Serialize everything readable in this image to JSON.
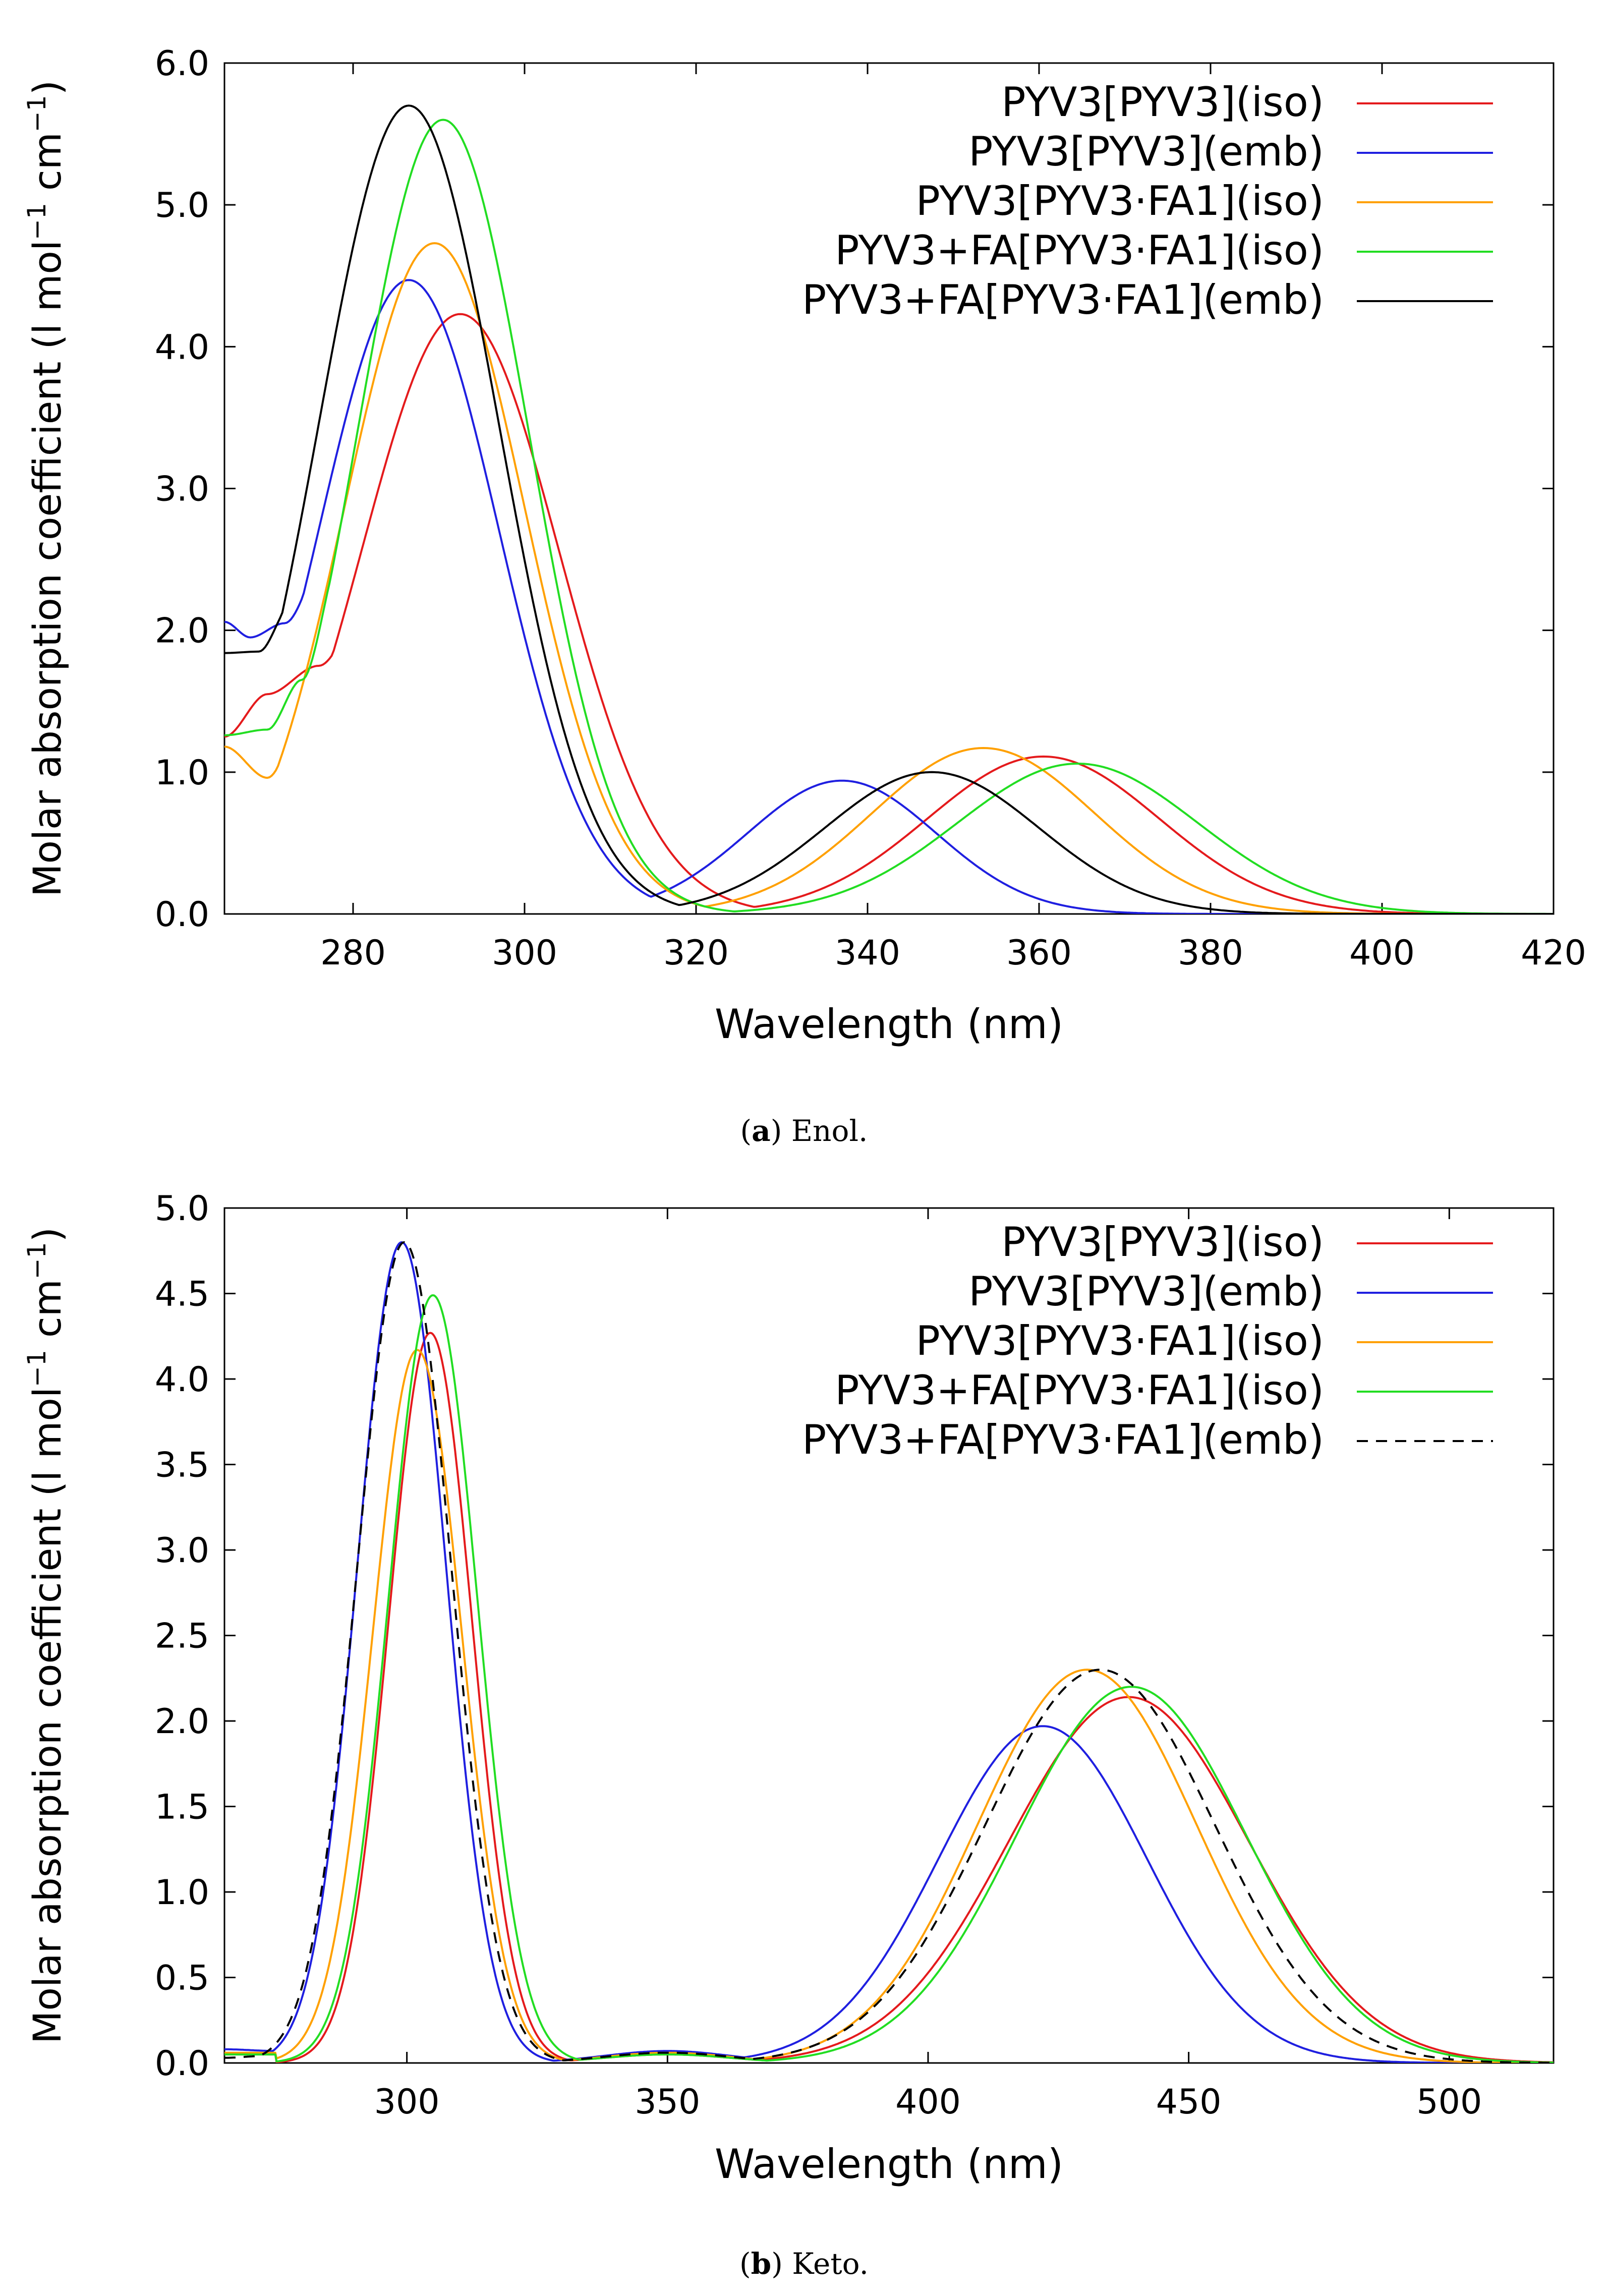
{
  "chart_data": [
    {
      "type": "line",
      "caption_label": "a",
      "caption_text": "Enol.",
      "xlabel": "Wavelength (nm)",
      "ylabel": "Molar absorption coefficient (l mol",
      "ylabel_sup1": "−1",
      "ylabel_mid": " cm",
      "ylabel_sup2": "−1",
      "ylabel_end": ")",
      "xlim": [
        265,
        420
      ],
      "ylim": [
        0,
        6
      ],
      "xticks": [
        280,
        300,
        320,
        340,
        360,
        380,
        400,
        420
      ],
      "yticks": [
        0,
        1,
        2,
        3,
        4,
        5,
        6
      ],
      "ytick_labels": [
        "0.0",
        "1.0",
        "2.0",
        "3.0",
        "4.0",
        "5.0",
        "6.0"
      ],
      "legend_position": "top-right",
      "series": [
        {
          "name": "PYV3[PYV3](iso)",
          "color": "#e41a1c",
          "dash": "solid",
          "baseline": [
            [
              265,
              1.25
            ],
            [
              270,
              1.55
            ],
            [
              276,
              1.75
            ],
            [
              282,
              2.2
            ],
            [
              287,
              3.0
            ]
          ],
          "peaks": [
            [
              292.5,
              4.23,
              11.5
            ],
            [
              360.5,
              1.11,
              13.5
            ]
          ]
        },
        {
          "name": "PYV3[PYV3](emb)",
          "color": "#1f1fe0",
          "dash": "solid",
          "baseline": [
            [
              265,
              2.06
            ],
            [
              268,
              1.95
            ],
            [
              272,
              2.05
            ],
            [
              278,
              2.7
            ]
          ],
          "peaks": [
            [
              286.5,
              4.47,
              10.5
            ],
            [
              337,
              0.94,
              11.0
            ]
          ]
        },
        {
          "name": "PYV3[PYV3·FA1](iso)",
          "color": "#ffa000",
          "dash": "solid",
          "baseline": [
            [
              265,
              1.18
            ],
            [
              270,
              0.96
            ],
            [
              274,
              1.3
            ],
            [
              279,
              2.3
            ]
          ],
          "peaks": [
            [
              289.5,
              4.73,
              10.5
            ],
            [
              353.5,
              1.17,
              13.0
            ]
          ]
        },
        {
          "name": "PYV3+FA[PYV3·FA1](iso)",
          "color": "#22dd22",
          "dash": "solid",
          "baseline": [
            [
              265,
              1.26
            ],
            [
              270,
              1.3
            ],
            [
              274,
              1.65
            ],
            [
              279,
              2.6
            ]
          ],
          "peaks": [
            [
              290.5,
              5.6,
              10.0
            ],
            [
              364.5,
              1.06,
              14.0
            ]
          ]
        },
        {
          "name": "PYV3+FA[PYV3·FA1](emb)",
          "color": "#000000",
          "dash": "solid",
          "baseline": [
            [
              265,
              1.84
            ],
            [
              269,
              1.85
            ],
            [
              273,
              2.2
            ],
            [
              278,
              3.4
            ]
          ],
          "peaks": [
            [
              286.5,
              5.7,
              10.5
            ],
            [
              347.5,
              1.0,
              12.5
            ]
          ]
        }
      ]
    },
    {
      "type": "line",
      "caption_label": "b",
      "caption_text": "Keto.",
      "xlabel": "Wavelength (nm)",
      "ylabel": "Molar absorption coefficient (l mol",
      "ylabel_sup1": "−1",
      "ylabel_mid": " cm",
      "ylabel_sup2": "−1",
      "ylabel_end": ")",
      "xlim": [
        265,
        520
      ],
      "ylim": [
        0,
        5
      ],
      "xticks": [
        300,
        350,
        400,
        450,
        500
      ],
      "yticks": [
        0,
        0.5,
        1,
        1.5,
        2,
        2.5,
        3,
        3.5,
        4,
        4.5,
        5
      ],
      "ytick_labels": [
        "0.0",
        "0.5",
        "1.0",
        "1.5",
        "2.0",
        "2.5",
        "3.0",
        "3.5",
        "4.0",
        "4.5",
        "5.0"
      ],
      "legend_position": "top-right",
      "series": [
        {
          "name": "PYV3[PYV3](iso)",
          "color": "#e41a1c",
          "dash": "solid",
          "baseline": [
            [
              265,
              0.05
            ],
            [
              275,
              0.05
            ]
          ],
          "peaks": [
            [
              304.5,
              4.27,
              8.0
            ],
            [
              350,
              0.05,
              12
            ],
            [
              438.5,
              2.14,
              23
            ]
          ]
        },
        {
          "name": "PYV3[PYV3](emb)",
          "color": "#1f1fe0",
          "dash": "solid",
          "baseline": [
            [
              265,
              0.08
            ],
            [
              275,
              0.07
            ]
          ],
          "peaks": [
            [
              299,
              4.8,
              8.5
            ],
            [
              350,
              0.07,
              12
            ],
            [
              422,
              1.97,
              20
            ]
          ]
        },
        {
          "name": "PYV3[PYV3·FA1](iso)",
          "color": "#ffa000",
          "dash": "solid",
          "baseline": [
            [
              265,
              0.06
            ],
            [
              275,
              0.06
            ]
          ],
          "peaks": [
            [
              302,
              4.17,
              8.5
            ],
            [
              350,
              0.06,
              12
            ],
            [
              430.5,
              2.3,
              21
            ]
          ]
        },
        {
          "name": "PYV3+FA[PYV3·FA1](iso)",
          "color": "#22dd22",
          "dash": "solid",
          "baseline": [
            [
              265,
              0.05
            ],
            [
              275,
              0.05
            ]
          ],
          "peaks": [
            [
              305,
              4.49,
              8.5
            ],
            [
              350,
              0.05,
              12
            ],
            [
              439,
              2.2,
              22
            ]
          ]
        },
        {
          "name": "PYV3+FA[PYV3·FA1](emb)",
          "color": "#000000",
          "dash": "dashed",
          "baseline": [
            [
              265,
              0.03
            ],
            [
              272,
              0.04
            ]
          ],
          "peaks": [
            [
              299.5,
              4.8,
              9.0
            ],
            [
              350,
              0.06,
              12
            ],
            [
              433,
              2.3,
              22
            ]
          ]
        }
      ]
    }
  ]
}
